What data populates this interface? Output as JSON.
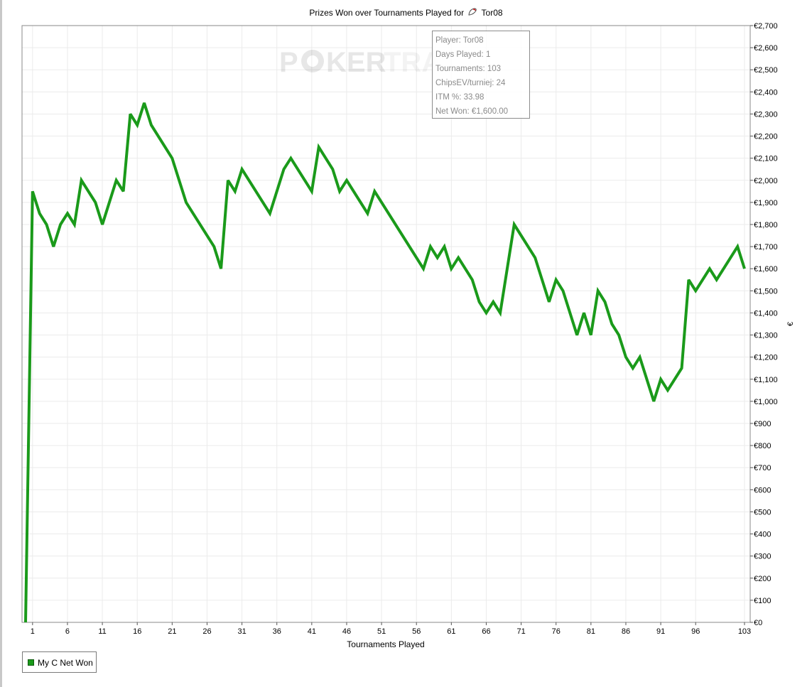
{
  "chart_data": {
    "type": "line",
    "title_prefix": "Prizes Won over Tournaments Played for",
    "title_player": "Tor08",
    "xlabel": "Tournaments Played",
    "ylabel": "€",
    "xlim": [
      0,
      103
    ],
    "ylim": [
      0,
      2700
    ],
    "x_ticks": [
      1,
      6,
      11,
      16,
      21,
      26,
      31,
      36,
      41,
      46,
      51,
      56,
      61,
      66,
      71,
      76,
      81,
      86,
      91,
      96,
      103
    ],
    "y_ticks": [
      "€0",
      "€100",
      "€200",
      "€300",
      "€400",
      "€500",
      "€600",
      "€700",
      "€800",
      "€900",
      "€1,000",
      "€1,100",
      "€1,200",
      "€1,300",
      "€1,400",
      "€1,500",
      "€1,600",
      "€1,700",
      "€1,800",
      "€1,900",
      "€2,000",
      "€2,100",
      "€2,200",
      "€2,300",
      "€2,400",
      "€2,500",
      "€2,600",
      "€2,700"
    ],
    "grid": true,
    "legend_position": "bottom-left",
    "series": [
      {
        "name": "My C Net Won",
        "color": "#1a9a1a",
        "points": [
          [
            0,
            0
          ],
          [
            1,
            1950
          ],
          [
            2,
            1850
          ],
          [
            3,
            1800
          ],
          [
            4,
            1700
          ],
          [
            5,
            1800
          ],
          [
            6,
            1850
          ],
          [
            7,
            1800
          ],
          [
            8,
            2000
          ],
          [
            10,
            1900
          ],
          [
            11,
            1800
          ],
          [
            13,
            2000
          ],
          [
            14,
            1950
          ],
          [
            15,
            2300
          ],
          [
            16,
            2250
          ],
          [
            17,
            2350
          ],
          [
            18,
            2250
          ],
          [
            21,
            2100
          ],
          [
            23,
            1900
          ],
          [
            27,
            1700
          ],
          [
            28,
            1600
          ],
          [
            29,
            2000
          ],
          [
            30,
            1950
          ],
          [
            31,
            2050
          ],
          [
            35,
            1850
          ],
          [
            37,
            2050
          ],
          [
            38,
            2100
          ],
          [
            41,
            1950
          ],
          [
            42,
            2150
          ],
          [
            44,
            2050
          ],
          [
            45,
            1950
          ],
          [
            46,
            2000
          ],
          [
            49,
            1850
          ],
          [
            50,
            1950
          ],
          [
            57,
            1600
          ],
          [
            58,
            1700
          ],
          [
            59,
            1650
          ],
          [
            60,
            1700
          ],
          [
            61,
            1600
          ],
          [
            62,
            1650
          ],
          [
            64,
            1550
          ],
          [
            65,
            1450
          ],
          [
            66,
            1400
          ],
          [
            67,
            1450
          ],
          [
            68,
            1400
          ],
          [
            70,
            1800
          ],
          [
            73,
            1650
          ],
          [
            75,
            1450
          ],
          [
            76,
            1550
          ],
          [
            77,
            1500
          ],
          [
            79,
            1300
          ],
          [
            80,
            1400
          ],
          [
            81,
            1300
          ],
          [
            82,
            1500
          ],
          [
            83,
            1450
          ],
          [
            84,
            1350
          ],
          [
            85,
            1300
          ],
          [
            86,
            1200
          ],
          [
            87,
            1150
          ],
          [
            88,
            1200
          ],
          [
            90,
            1000
          ],
          [
            91,
            1100
          ],
          [
            92,
            1050
          ],
          [
            94,
            1150
          ],
          [
            95,
            1550
          ],
          [
            96,
            1500
          ],
          [
            98,
            1600
          ],
          [
            99,
            1550
          ],
          [
            102,
            1700
          ],
          [
            103,
            1600
          ]
        ]
      }
    ]
  },
  "watermark": {
    "text_left": "P",
    "text_right": "KER",
    "text_faded": "TRA"
  },
  "tooltip": {
    "player": "Player: Tor08",
    "days": "Days Played: 1",
    "tournaments": "Tournaments: 103",
    "chipsev": "ChipsEV/turniej: 24",
    "itm": "ITM %: 33.98",
    "net_won": "Net Won: €1,600.00"
  },
  "legend": {
    "label": "My C Net Won",
    "swatch_color": "#1a9a1a"
  }
}
